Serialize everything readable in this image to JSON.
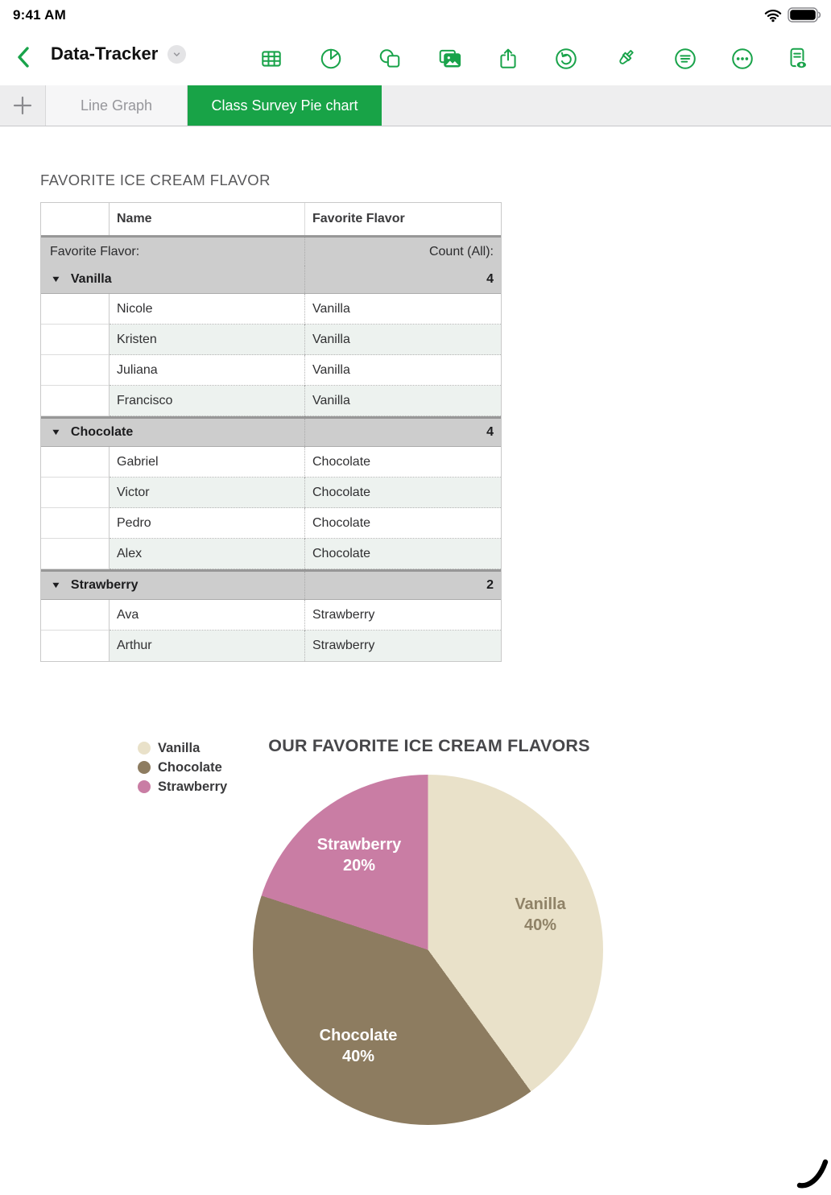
{
  "status_bar": {
    "time": "9:41 AM",
    "wifi_icon": "wifi",
    "battery_icon": "battery-full"
  },
  "toolbar": {
    "title": "Data-Tracker",
    "back_icon": "chevron-left",
    "title_badge_icon": "chevron-down",
    "accent_color": "#19a34a",
    "icons": [
      "insert-table-icon",
      "insert-chart-icon",
      "insert-shape-icon",
      "insert-media-icon",
      "share-icon",
      "undo-icon",
      "format-brush-icon",
      "text-format-icon",
      "more-icon",
      "view-only-icon"
    ]
  },
  "tabs": {
    "add_icon": "plus",
    "items": [
      {
        "label": "Line Graph",
        "active": false
      },
      {
        "label": "Class Survey Pie chart",
        "active": true
      }
    ],
    "active_color": "#18a347"
  },
  "sheet": {
    "table_title": "FAVORITE ICE CREAM FLAVOR",
    "table": {
      "columns": [
        "Name",
        "Favorite Flavor"
      ],
      "pivot_label": "Favorite Flavor:",
      "pivot_value_label": "Count (All):",
      "groups": [
        {
          "flavor": "Vanilla",
          "count": "4",
          "members": [
            "Nicole",
            "Kristen",
            "Juliana",
            "Francisco"
          ]
        },
        {
          "flavor": "Chocolate",
          "count": "4",
          "members": [
            "Gabriel",
            "Victor",
            "Pedro",
            "Alex"
          ]
        },
        {
          "flavor": "Strawberry",
          "count": "2",
          "members": [
            "Ava",
            "Arthur"
          ]
        }
      ]
    }
  },
  "chart_data": {
    "type": "pie",
    "title": "OUR FAVORITE ICE CREAM FLAVORS",
    "categories": [
      "Vanilla",
      "Chocolate",
      "Strawberry"
    ],
    "values": [
      40,
      40,
      20
    ],
    "unit": "%",
    "direction": "clockwise",
    "start_angle_deg": 0,
    "legend_position": "top-left",
    "colors": [
      "#e9e1c9",
      "#8d7c60",
      "#c97da4"
    ],
    "label_colors": [
      "#8f8267",
      "#ffffff",
      "#ffffff"
    ],
    "slice_labels": [
      "Vanilla 40%",
      "Chocolate 40%",
      "Strawberry 20%"
    ]
  }
}
